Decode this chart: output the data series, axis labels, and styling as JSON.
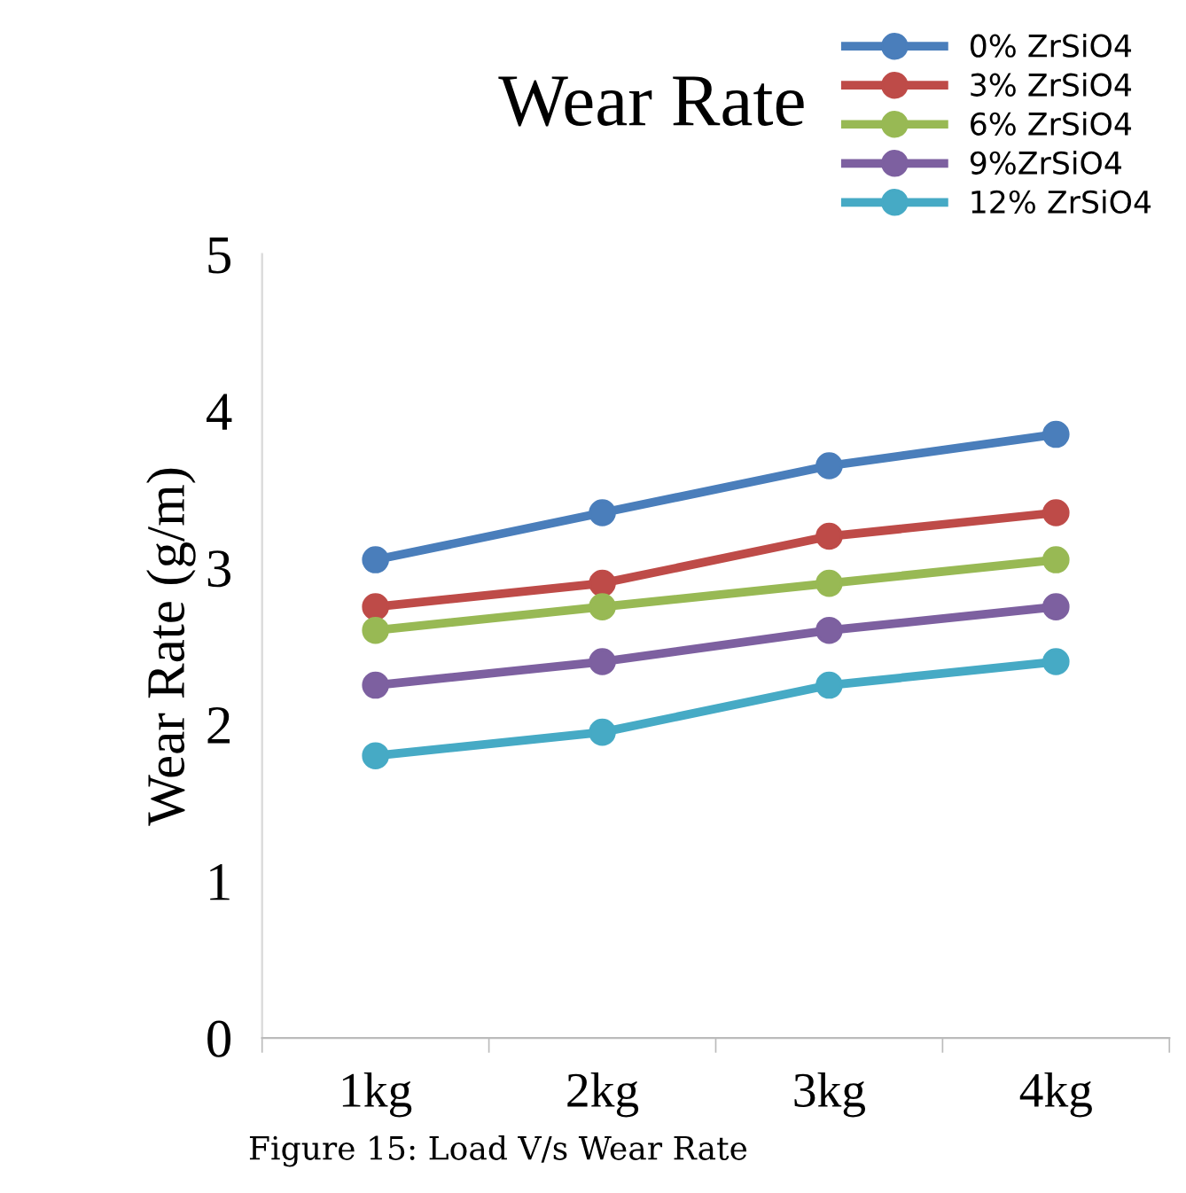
{
  "chart_data": {
    "type": "line",
    "title": "Wear Rate",
    "ylabel": "Wear Rate (g/m)",
    "categories": [
      "1kg",
      "2kg",
      "3kg",
      "4kg"
    ],
    "series": [
      {
        "name": "0% ZrSiO4",
        "color": "#4a7ebb",
        "values": [
          3.05,
          3.35,
          3.65,
          3.85
        ]
      },
      {
        "name": "3% ZrSiO4",
        "color": "#be4b48",
        "values": [
          2.75,
          2.9,
          3.2,
          3.35
        ]
      },
      {
        "name": "6% ZrSiO4",
        "color": "#98b954",
        "values": [
          2.6,
          2.75,
          2.9,
          3.05
        ]
      },
      {
        "name": "9%ZrSiO4",
        "color": "#7d60a0",
        "values": [
          2.25,
          2.4,
          2.6,
          2.75
        ]
      },
      {
        "name": "12% ZrSiO4",
        "color": "#46aac5",
        "values": [
          1.8,
          1.95,
          2.25,
          2.4
        ]
      }
    ],
    "ylim": [
      0,
      5
    ],
    "yticks": [
      0,
      1,
      2,
      3,
      4,
      5
    ],
    "grid": false,
    "legend": "top right",
    "marker": "circle",
    "line_style": "solid",
    "annotations": [
      "Figure 15: Load V/s Wear Rate"
    ]
  }
}
